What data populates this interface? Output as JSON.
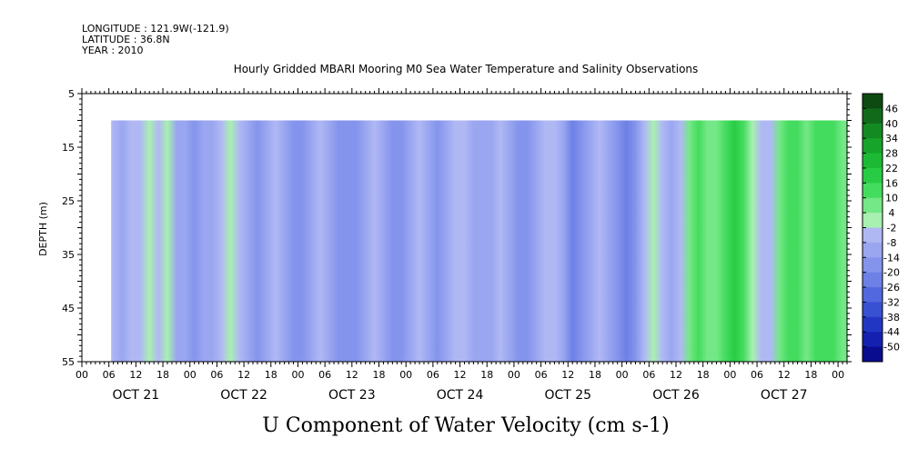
{
  "header": {
    "longitude": "LONGITUDE : 121.9W(-121.9)",
    "latitude": "LATITUDE : 36.8N",
    "year": "YEAR : 2010"
  },
  "chart_data": {
    "type": "heatmap",
    "title": "Hourly Gridded MBARI Mooring M0 Sea Water Temperature and Salinity Observations",
    "variable_label": "U Component of Water Velocity (cm s-1)",
    "ylabel": "DEPTH (m)",
    "ylim": [
      55,
      5
    ],
    "y_ticks": [
      "5",
      "15",
      "25",
      "35",
      "45",
      "55"
    ],
    "x_hour_ticks": [
      "00",
      "06",
      "12",
      "18",
      "00",
      "06",
      "12",
      "18",
      "00",
      "06",
      "12",
      "18",
      "00",
      "06",
      "12",
      "18",
      "00",
      "06",
      "12",
      "18",
      "00",
      "06",
      "12",
      "18",
      "00",
      "06",
      "12",
      "18",
      "00"
    ],
    "x_day_labels": [
      "OCT 21",
      "OCT 22",
      "OCT 23",
      "OCT 24",
      "OCT 25",
      "OCT 26",
      "OCT 27"
    ],
    "x_range_hours": [
      0,
      170
    ],
    "data_start_hour": 6.5,
    "data_top_depth": 10,
    "colorbar": {
      "labels": [
        "46",
        "40",
        "34",
        "28",
        "22",
        "16",
        "10",
        "4",
        "-2",
        "-8",
        "-14",
        "-20",
        "-26",
        "-32",
        "-38",
        "-44",
        "-50"
      ],
      "colors": [
        "#0c4a12",
        "#116a1a",
        "#148a22",
        "#16a42a",
        "#1cba34",
        "#28cc44",
        "#44dc5e",
        "#74e886",
        "#a8f0b0",
        "#b0b8f4",
        "#9aa6f0",
        "#8494ec",
        "#6c80e6",
        "#5268de",
        "#3850d2",
        "#2236c4",
        "#1420b0",
        "#0a0c90"
      ]
    },
    "columns": [
      {
        "t": 6.5,
        "v": -6
      },
      {
        "t": 9,
        "v": -8
      },
      {
        "t": 11,
        "v": -4
      },
      {
        "t": 13,
        "v": -6
      },
      {
        "t": 15,
        "v": 2
      },
      {
        "t": 17,
        "v": -2
      },
      {
        "t": 19,
        "v": 4
      },
      {
        "t": 21,
        "v": -8
      },
      {
        "t": 23,
        "v": -12
      },
      {
        "t": 25,
        "v": -16
      },
      {
        "t": 27,
        "v": -12
      },
      {
        "t": 29,
        "v": -8
      },
      {
        "t": 31,
        "v": -4
      },
      {
        "t": 33,
        "v": 0
      },
      {
        "t": 35,
        "v": -6
      },
      {
        "t": 37,
        "v": -10
      },
      {
        "t": 39,
        "v": -14
      },
      {
        "t": 41,
        "v": -10
      },
      {
        "t": 43,
        "v": -4
      },
      {
        "t": 45,
        "v": -8
      },
      {
        "t": 47,
        "v": -14
      },
      {
        "t": 49,
        "v": -16
      },
      {
        "t": 51,
        "v": -10
      },
      {
        "t": 53,
        "v": -4
      },
      {
        "t": 55,
        "v": -8
      },
      {
        "t": 57,
        "v": -14
      },
      {
        "t": 59,
        "v": -18
      },
      {
        "t": 61,
        "v": -14
      },
      {
        "t": 63,
        "v": -8
      },
      {
        "t": 65,
        "v": -2
      },
      {
        "t": 67,
        "v": -10
      },
      {
        "t": 69,
        "v": -16
      },
      {
        "t": 71,
        "v": -14
      },
      {
        "t": 73,
        "v": -10
      },
      {
        "t": 75,
        "v": -6
      },
      {
        "t": 77,
        "v": -10
      },
      {
        "t": 79,
        "v": -16
      },
      {
        "t": 81,
        "v": -12
      },
      {
        "t": 83,
        "v": -6
      },
      {
        "t": 85,
        "v": -4
      },
      {
        "t": 87,
        "v": -8
      },
      {
        "t": 89,
        "v": -12
      },
      {
        "t": 91,
        "v": -10
      },
      {
        "t": 93,
        "v": -6
      },
      {
        "t": 95,
        "v": -8
      },
      {
        "t": 97,
        "v": -14
      },
      {
        "t": 99,
        "v": -18
      },
      {
        "t": 101,
        "v": -12
      },
      {
        "t": 103,
        "v": -6
      },
      {
        "t": 105,
        "v": -4
      },
      {
        "t": 107,
        "v": -10
      },
      {
        "t": 109,
        "v": -22
      },
      {
        "t": 111,
        "v": -16
      },
      {
        "t": 113,
        "v": -8
      },
      {
        "t": 115,
        "v": -6
      },
      {
        "t": 117,
        "v": -12
      },
      {
        "t": 119,
        "v": -18
      },
      {
        "t": 121,
        "v": -22
      },
      {
        "t": 123,
        "v": -14
      },
      {
        "t": 125,
        "v": -4
      },
      {
        "t": 127,
        "v": 2
      },
      {
        "t": 129,
        "v": -6
      },
      {
        "t": 131,
        "v": -12
      },
      {
        "t": 133,
        "v": -4
      },
      {
        "t": 135,
        "v": 8
      },
      {
        "t": 137,
        "v": 14
      },
      {
        "t": 139,
        "v": 10
      },
      {
        "t": 141,
        "v": 6
      },
      {
        "t": 143,
        "v": 14
      },
      {
        "t": 145,
        "v": 18
      },
      {
        "t": 147,
        "v": 12
      },
      {
        "t": 149,
        "v": 4
      },
      {
        "t": 151,
        "v": -6
      },
      {
        "t": 153,
        "v": -2
      },
      {
        "t": 155,
        "v": 10
      },
      {
        "t": 157,
        "v": 16
      },
      {
        "t": 159,
        "v": 12
      },
      {
        "t": 161,
        "v": 8
      },
      {
        "t": 163,
        "v": 12
      },
      {
        "t": 165,
        "v": 16
      },
      {
        "t": 167,
        "v": 12
      },
      {
        "t": 169,
        "v": 6
      }
    ]
  }
}
